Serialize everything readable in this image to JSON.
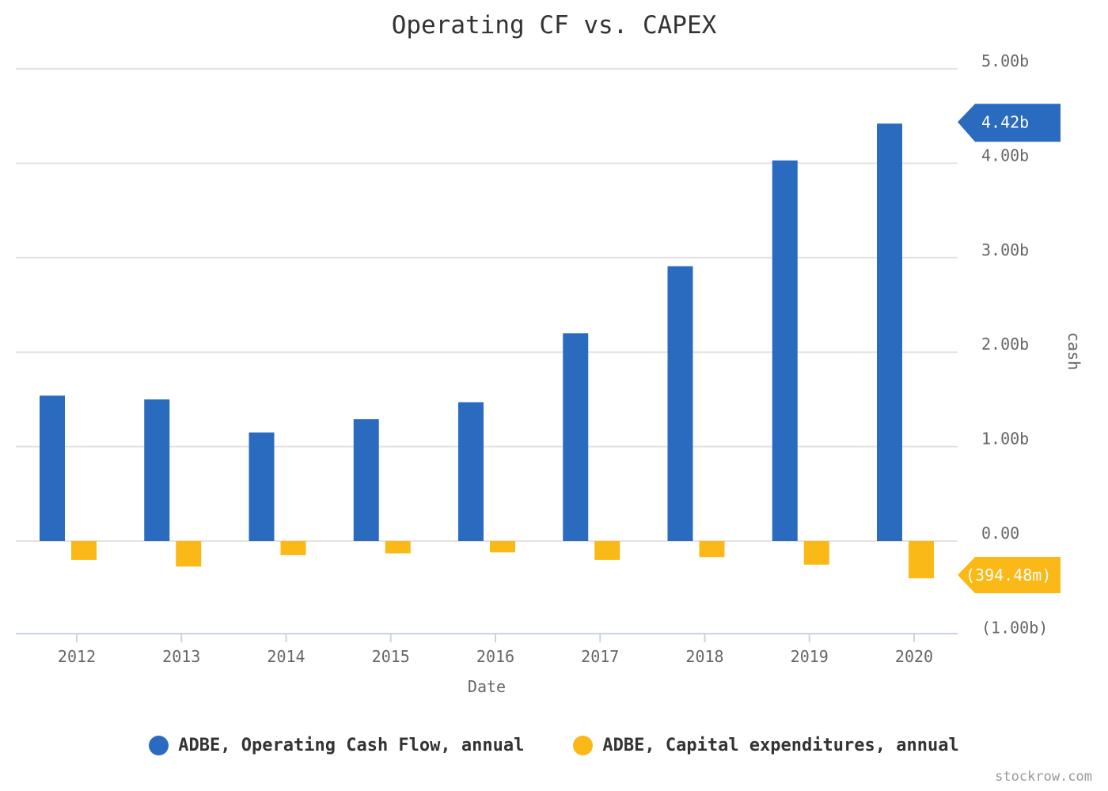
{
  "chart_data": {
    "type": "bar",
    "title": "Operating CF vs. CAPEX",
    "xlabel": "Date",
    "ylabel": "cash",
    "categories": [
      "2012",
      "2013",
      "2014",
      "2015",
      "2016",
      "2017",
      "2018",
      "2019",
      "2020"
    ],
    "series": [
      {
        "name": "ADBE, Operating Cash Flow, annual",
        "color": "#2a6bbf",
        "values": [
          1.54,
          1.5,
          1.15,
          1.29,
          1.47,
          2.2,
          2.91,
          4.03,
          4.42
        ]
      },
      {
        "name": "ADBE, Capital expenditures, annual",
        "color": "#fbb917",
        "values": [
          -0.2,
          -0.27,
          -0.15,
          -0.13,
          -0.12,
          -0.2,
          -0.17,
          -0.25,
          -0.39448
        ]
      }
    ],
    "ylim": [
      -1,
      5
    ],
    "yticks": [
      5,
      4,
      3,
      2,
      1,
      0,
      -1
    ],
    "ytick_labels": [
      "5.00b",
      "4.00b",
      "3.00b",
      "2.00b",
      "1.00b",
      "0.00",
      "(1.00b)"
    ],
    "last_value_labels": [
      "4.42b",
      "(394.48m)"
    ],
    "y_units": "billions",
    "grid": true,
    "legend": "bottom"
  },
  "watermark": "stockrow.com"
}
